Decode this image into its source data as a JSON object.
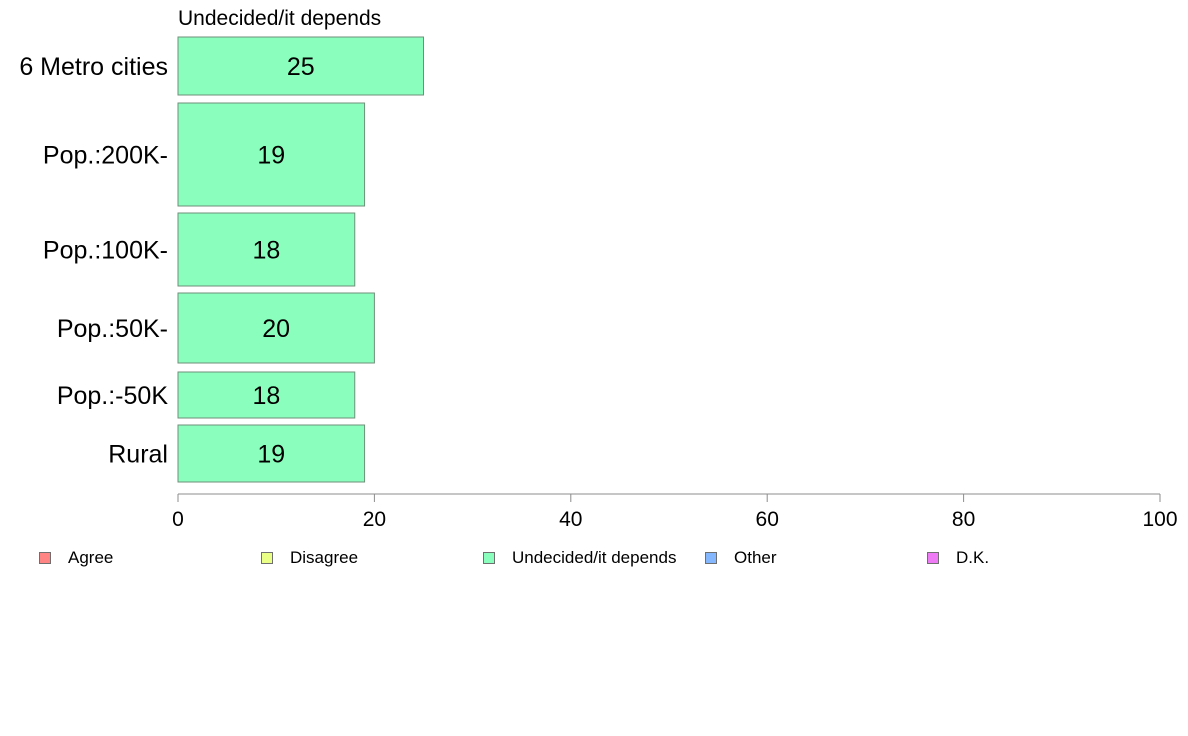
{
  "chart_data": {
    "type": "bar",
    "orientation": "horizontal",
    "title": "Undecided/it depends",
    "categories": [
      "6 Metro cities",
      "Pop.:200K-",
      "Pop.:100K-",
      "Pop.:50K-",
      "Pop.:-50K",
      "Rural"
    ],
    "series": [
      {
        "name": "Undecided/it depends",
        "values": [
          25,
          19,
          18,
          20,
          18,
          19
        ],
        "color": "#8affbd"
      }
    ],
    "xlim": [
      0,
      100
    ],
    "xticks": [
      0,
      20,
      40,
      60,
      80,
      100
    ],
    "xlabel": "",
    "ylabel": "",
    "grid": false,
    "legend_position": "bottom",
    "legend": [
      {
        "label": "Agree",
        "color": "#ff8585"
      },
      {
        "label": "Disagree",
        "color": "#eaff85"
      },
      {
        "label": "Undecided/it depends",
        "color": "#8affbd"
      },
      {
        "label": "Other",
        "color": "#85b7ff"
      },
      {
        "label": "D.K.",
        "color": "#ee7bf5"
      }
    ]
  }
}
